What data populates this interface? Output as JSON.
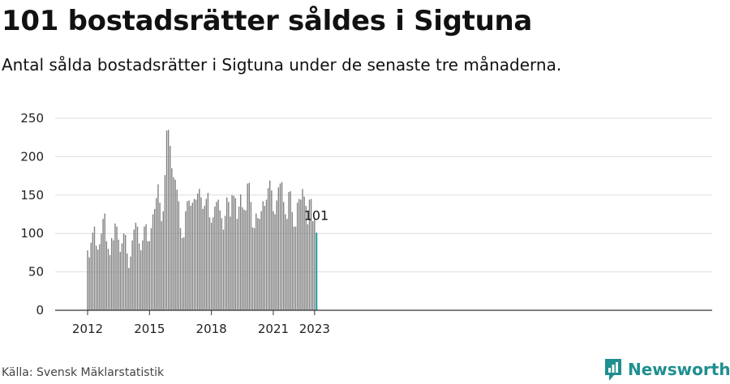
{
  "header": {
    "title": "101 bostadsrätter såldes i Sigtuna",
    "subtitle": "Antal sålda bostadsrätter i Sigtuna under de senaste tre månaderna."
  },
  "footer": {
    "source": "Källa: Svensk Mäklarstatistik",
    "brand": "Newsworthy"
  },
  "colors": {
    "bar": "#808080",
    "highlight": "#1a9bab",
    "grid": "#dddddd",
    "axis": "#333333",
    "brand": "#1f8f8f"
  },
  "chart_data": {
    "type": "bar",
    "title": "101 bostadsrätter såldes i Sigtuna",
    "subtitle": "Antal sålda bostadsrätter i Sigtuna under de senaste tre månaderna.",
    "xlabel": "",
    "ylabel": "",
    "ylim": [
      0,
      250
    ],
    "yticks": [
      0,
      50,
      100,
      150,
      200,
      250
    ],
    "grid": true,
    "legend": "none",
    "x_start": "2012-01",
    "xtick_labels": [
      "2012",
      "2015",
      "2018",
      "2021",
      "2023"
    ],
    "xtick_months": [
      "2012-01",
      "2015-01",
      "2018-01",
      "2021-01",
      "2023-01"
    ],
    "highlight_last": true,
    "last_label": "101",
    "values": [
      78,
      69,
      88,
      101,
      109,
      84,
      79,
      86,
      100,
      119,
      126,
      90,
      80,
      72,
      94,
      91,
      113,
      109,
      92,
      76,
      87,
      100,
      98,
      74,
      55,
      70,
      91,
      105,
      114,
      109,
      87,
      78,
      91,
      109,
      112,
      90,
      90,
      107,
      125,
      132,
      146,
      164,
      140,
      116,
      129,
      176,
      234,
      235,
      214,
      185,
      173,
      170,
      157,
      142,
      107,
      94,
      95,
      129,
      142,
      143,
      136,
      140,
      145,
      144,
      152,
      158,
      147,
      132,
      136,
      145,
      153,
      121,
      114,
      121,
      135,
      141,
      144,
      130,
      120,
      105,
      123,
      147,
      141,
      122,
      150,
      149,
      146,
      119,
      135,
      151,
      134,
      131,
      130,
      165,
      166,
      141,
      108,
      107,
      126,
      120,
      119,
      129,
      142,
      136,
      144,
      159,
      169,
      156,
      129,
      125,
      143,
      160,
      165,
      167,
      141,
      125,
      119,
      154,
      155,
      128,
      109,
      109,
      140,
      145,
      144,
      158,
      148,
      136,
      112,
      144,
      145,
      116,
      119,
      101
    ]
  }
}
